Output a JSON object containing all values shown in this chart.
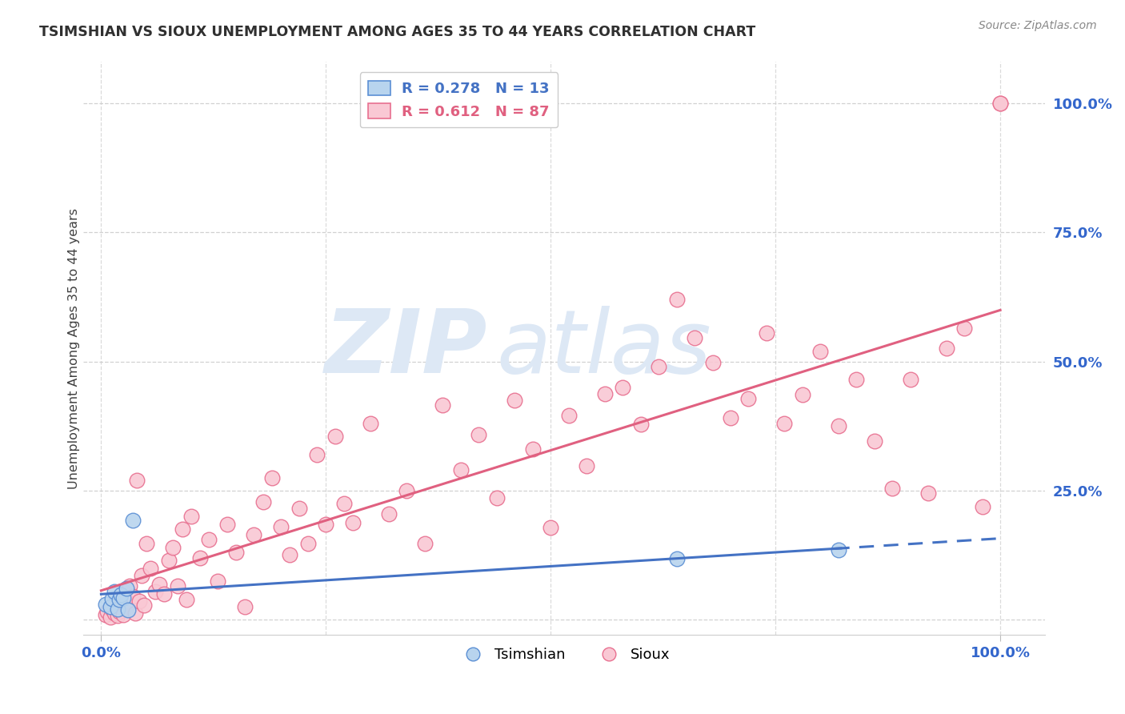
{
  "title": "TSIMSHIAN VS SIOUX UNEMPLOYMENT AMONG AGES 35 TO 44 YEARS CORRELATION CHART",
  "source": "Source: ZipAtlas.com",
  "ylabel": "Unemployment Among Ages 35 to 44 years",
  "xlim": [
    0.0,
    1.0
  ],
  "ylim": [
    0.0,
    1.0
  ],
  "legend_tsimshian": "R = 0.278   N = 13",
  "legend_sioux": "R = 0.612   N = 87",
  "tsimshian_color": "#b8d4ee",
  "tsimshian_edge": "#5b8fd4",
  "sioux_color": "#f9c8d4",
  "sioux_edge": "#e87090",
  "line_tsimshian_color": "#4472c4",
  "line_sioux_color": "#e06080",
  "watermark_zip": "ZIP",
  "watermark_atlas": "atlas",
  "watermark_color": "#dde8f5",
  "title_color": "#303030",
  "axis_label_color": "#404040",
  "tick_label_color": "#3366cc",
  "grid_color": "#cccccc",
  "background_color": "#ffffff",
  "tsimshian_x": [
    0.005,
    0.01,
    0.012,
    0.015,
    0.018,
    0.02,
    0.022,
    0.025,
    0.028,
    0.03,
    0.035,
    0.64,
    0.82
  ],
  "tsimshian_y": [
    0.03,
    0.025,
    0.04,
    0.055,
    0.02,
    0.038,
    0.048,
    0.042,
    0.06,
    0.018,
    0.192,
    0.118,
    0.135
  ],
  "sioux_x": [
    0.005,
    0.007,
    0.01,
    0.012,
    0.015,
    0.015,
    0.018,
    0.02,
    0.02,
    0.022,
    0.025,
    0.025,
    0.028,
    0.03,
    0.032,
    0.035,
    0.038,
    0.04,
    0.042,
    0.045,
    0.048,
    0.05,
    0.055,
    0.06,
    0.065,
    0.07,
    0.075,
    0.08,
    0.085,
    0.09,
    0.095,
    0.1,
    0.11,
    0.12,
    0.13,
    0.14,
    0.15,
    0.16,
    0.17,
    0.18,
    0.19,
    0.2,
    0.21,
    0.22,
    0.23,
    0.24,
    0.25,
    0.26,
    0.27,
    0.28,
    0.3,
    0.32,
    0.34,
    0.36,
    0.38,
    0.4,
    0.42,
    0.44,
    0.46,
    0.48,
    0.5,
    0.52,
    0.54,
    0.56,
    0.58,
    0.6,
    0.62,
    0.64,
    0.66,
    0.68,
    0.7,
    0.72,
    0.74,
    0.76,
    0.78,
    0.8,
    0.82,
    0.84,
    0.86,
    0.88,
    0.9,
    0.92,
    0.94,
    0.96,
    0.98,
    1.0,
    1.0
  ],
  "sioux_y": [
    0.01,
    0.015,
    0.005,
    0.02,
    0.012,
    0.03,
    0.008,
    0.015,
    0.04,
    0.025,
    0.01,
    0.055,
    0.035,
    0.02,
    0.065,
    0.045,
    0.012,
    0.27,
    0.035,
    0.085,
    0.028,
    0.148,
    0.1,
    0.055,
    0.068,
    0.05,
    0.115,
    0.14,
    0.065,
    0.175,
    0.038,
    0.2,
    0.12,
    0.155,
    0.075,
    0.185,
    0.13,
    0.025,
    0.165,
    0.228,
    0.275,
    0.18,
    0.125,
    0.215,
    0.148,
    0.32,
    0.185,
    0.355,
    0.225,
    0.188,
    0.38,
    0.205,
    0.25,
    0.148,
    0.415,
    0.29,
    0.358,
    0.235,
    0.425,
    0.33,
    0.178,
    0.395,
    0.298,
    0.438,
    0.45,
    0.378,
    0.49,
    0.62,
    0.545,
    0.498,
    0.39,
    0.428,
    0.555,
    0.38,
    0.435,
    0.52,
    0.375,
    0.465,
    0.345,
    0.255,
    0.465,
    0.245,
    0.525,
    0.565,
    0.218,
    1.0,
    1.0
  ]
}
